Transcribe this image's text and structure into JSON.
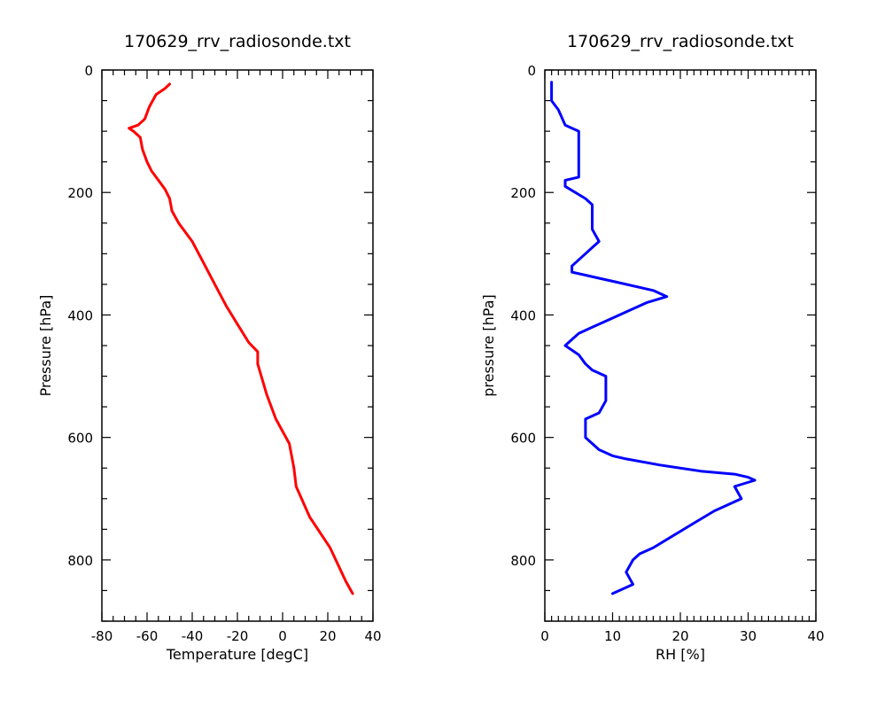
{
  "chart_data": [
    {
      "type": "line",
      "title": "170629_rrv_radiosonde.txt",
      "xlabel": "Temperature [degC]",
      "ylabel": "Pressure [hPa]",
      "xlim": [
        -80,
        40
      ],
      "ylim": [
        900,
        0
      ],
      "y_inverted": true,
      "xticks": [
        -80,
        -60,
        -40,
        -20,
        0,
        20,
        40
      ],
      "yticks": [
        0,
        200,
        400,
        600,
        800
      ],
      "grid": false,
      "series": [
        {
          "color": "#ff0000",
          "x": [
            -50,
            -52,
            -56,
            -59,
            -61,
            -64,
            -68,
            -66,
            -63,
            -62,
            -60,
            -58,
            -55,
            -52,
            -50,
            -49,
            -46,
            -40,
            -35,
            -30,
            -25,
            -20,
            -15,
            -11,
            -11,
            -7,
            -3,
            3,
            5,
            6,
            12,
            21,
            28,
            31
          ],
          "y": [
            23,
            30,
            40,
            60,
            80,
            90,
            95,
            100,
            110,
            130,
            150,
            165,
            180,
            195,
            210,
            230,
            250,
            280,
            315,
            350,
            385,
            415,
            445,
            460,
            480,
            530,
            570,
            610,
            650,
            680,
            730,
            780,
            835,
            855
          ]
        }
      ]
    },
    {
      "type": "line",
      "title": "170629_rrv_radiosonde.txt",
      "xlabel": "RH [%]",
      "ylabel": "pressure [hPa]",
      "xlim": [
        0,
        40
      ],
      "ylim": [
        900,
        0
      ],
      "y_inverted": true,
      "xticks": [
        0,
        10,
        20,
        30,
        40
      ],
      "yticks": [
        0,
        200,
        400,
        600,
        800
      ],
      "grid": false,
      "series": [
        {
          "color": "#0000ff",
          "x": [
            1,
            1,
            2,
            3,
            5,
            5,
            5,
            3,
            3,
            6,
            7,
            7,
            8,
            7,
            6,
            4,
            4,
            6,
            8,
            10,
            16,
            18,
            15,
            12,
            9,
            7,
            5,
            4,
            3,
            5,
            6,
            7,
            9,
            9,
            8,
            6,
            6,
            8,
            10,
            12,
            17,
            23,
            28,
            30,
            31,
            28,
            29,
            25,
            22,
            19,
            16,
            14,
            13,
            12,
            13,
            10
          ],
          "y": [
            20,
            50,
            65,
            90,
            100,
            160,
            175,
            180,
            190,
            210,
            220,
            260,
            280,
            290,
            300,
            320,
            330,
            335,
            340,
            345,
            360,
            370,
            380,
            395,
            410,
            420,
            430,
            440,
            450,
            465,
            480,
            490,
            500,
            540,
            560,
            570,
            600,
            620,
            630,
            635,
            645,
            655,
            660,
            665,
            670,
            680,
            700,
            720,
            740,
            760,
            780,
            790,
            800,
            820,
            840,
            855
          ]
        }
      ]
    }
  ]
}
